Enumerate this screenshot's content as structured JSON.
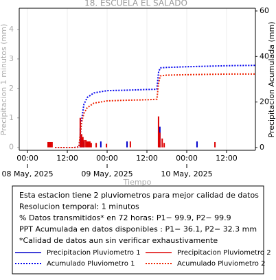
{
  "chart_data": {
    "type": "bar",
    "title": "18. ESCUELA EL SALADO",
    "y_label": "Precipitacion 1 minutos (mm)",
    "y2_label": "Precipitacion Acumulada (mm)",
    "x_label": "Tiempo",
    "xlim": [
      -2.5,
      68.7
    ],
    "xticks": [
      {
        "value": 0,
        "label": "00:00"
      },
      {
        "value": 12,
        "label": "12:00"
      },
      {
        "value": 24,
        "label": "00:00"
      },
      {
        "value": 36,
        "label": "12:00"
      },
      {
        "value": 48,
        "label": "00:00"
      },
      {
        "value": 60,
        "label": "12:00"
      }
    ],
    "date_ticks": [
      {
        "value": 0,
        "label": "08 May, 2025"
      },
      {
        "value": 24,
        "label": "09 May, 2025"
      },
      {
        "value": 48,
        "label": "10 May, 2025"
      }
    ],
    "ylim": [
      -0.1,
      4.72
    ],
    "yticks": [
      0,
      1,
      2,
      3,
      4
    ],
    "y2lim": [
      -1.2,
      61.2
    ],
    "y2ticks": [
      0,
      20,
      40,
      60
    ],
    "grid": true,
    "series": [
      {
        "name": "Precipitacion Pluviometro 1",
        "type": "bar",
        "color": "#0000cc",
        "x": [
          15.9,
          16.3,
          16.9,
          22.1,
          30,
          39.9,
          51.1
        ],
        "values": [
          0.65,
          0.3,
          0.2,
          0.2,
          0.2,
          0.7,
          0.2
        ]
      },
      {
        "name": "Precipitacion Pluviometro 2",
        "type": "bar",
        "color": "#dd0000",
        "x": [
          6.2,
          6.6,
          7.0,
          7.4,
          15.9,
          16.3,
          16.7,
          17.1,
          17.6,
          18.0,
          18.4,
          18.8,
          19.2,
          20.7,
          23.8,
          31,
          39.5,
          39.9,
          40.6,
          41.2,
          56.5
        ],
        "values": [
          0.18,
          0.18,
          0.18,
          0.18,
          1.0,
          0.45,
          0.35,
          0.25,
          0.25,
          0.2,
          0.2,
          0.2,
          0.15,
          0.15,
          0.12,
          0.2,
          1.05,
          0.5,
          0.3,
          0.15,
          0.18
        ]
      },
      {
        "name": "Acumulado Pluviometro 1",
        "type": "line",
        "axis": "y2",
        "color": "#0000ee",
        "x": [
          8.3,
          10,
          12,
          14,
          15.5,
          15.9,
          16.3,
          17,
          18,
          20,
          24,
          30,
          36,
          39,
          39.5,
          40,
          42,
          48,
          56,
          62,
          68.7
        ],
        "values": [
          0,
          0,
          0,
          0,
          0.3,
          5,
          12,
          19,
          22,
          24,
          25,
          25.2,
          25.5,
          25.6,
          33,
          35,
          35.2,
          35.5,
          35.8,
          36,
          36.1
        ]
      },
      {
        "name": "Acumulado Pluviometro 2",
        "type": "line",
        "axis": "y2",
        "color": "#ee2200",
        "x": [
          8.3,
          10,
          12,
          14,
          15.5,
          15.9,
          16.3,
          17,
          18,
          20,
          24,
          30,
          36,
          39,
          39.5,
          40,
          42,
          48,
          56,
          62,
          68.7
        ],
        "values": [
          0,
          0,
          0,
          0,
          0.3,
          6,
          11,
          15,
          17.5,
          19.5,
          20.5,
          20.8,
          21,
          21.2,
          28,
          31.5,
          31.8,
          32,
          32.2,
          32.3,
          32.3
        ]
      }
    ],
    "notes": [
      "Esta estacion tiene 2 pluviometros para mejor calidad de datos",
      "Resolucion temporal: 1 minutos",
      "% Datos transmitidos* en 72 horas: P1− 99.9, P2− 99.9",
      "PPT Acumulada en datos disponibles : P1− 36.1, P2− 32.3 mm",
      "*Calidad de datos aun sin verificar exhaustivamente"
    ]
  }
}
